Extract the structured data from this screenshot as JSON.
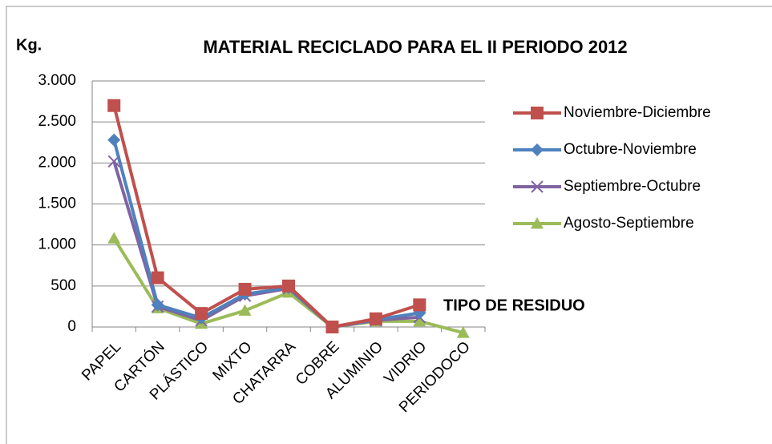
{
  "chart_data": {
    "type": "line",
    "title": "MATERIAL RECICLADO PARA EL II PERIODO 2012",
    "y_label": "Kg.",
    "x_label": "TIPO DE RESIDUO",
    "categories": [
      "PAPEL",
      "CARTÓN",
      "PLÁSTICO",
      "MIXTO",
      "CHATARRA",
      "COBRE",
      "ALUMINIO",
      "VIDRIO",
      "PERIODOCO"
    ],
    "series": [
      {
        "name": "Noviembre-Diciembre",
        "color": "#c0504d",
        "marker": "square",
        "values": [
          2700,
          600,
          165,
          460,
          500,
          0,
          100,
          270,
          null
        ]
      },
      {
        "name": "Octubre-Noviembre",
        "color": "#4f81bd",
        "marker": "diamond",
        "values": [
          2280,
          270,
          110,
          400,
          480,
          0,
          90,
          170,
          null
        ]
      },
      {
        "name": "Septiembre-Octubre",
        "color": "#8064a2",
        "marker": "x",
        "values": [
          2020,
          250,
          80,
          380,
          470,
          0,
          80,
          120,
          null
        ]
      },
      {
        "name": "Agosto-Septiembre",
        "color": "#9bbb59",
        "marker": "triangle",
        "values": [
          1080,
          230,
          40,
          200,
          420,
          0,
          70,
          70,
          -70
        ]
      }
    ],
    "ylim": [
      0,
      3000
    ],
    "yticks": [
      0,
      500,
      {
        "value": 1000,
        "label": "1.000"
      },
      {
        "value": 1500,
        "label": "1.500"
      },
      {
        "value": 2000,
        "label": "2.000"
      },
      {
        "value": 2500,
        "label": "2.500"
      },
      {
        "value": 3000,
        "label": "3.000"
      }
    ],
    "grid": true,
    "legend": "right"
  }
}
